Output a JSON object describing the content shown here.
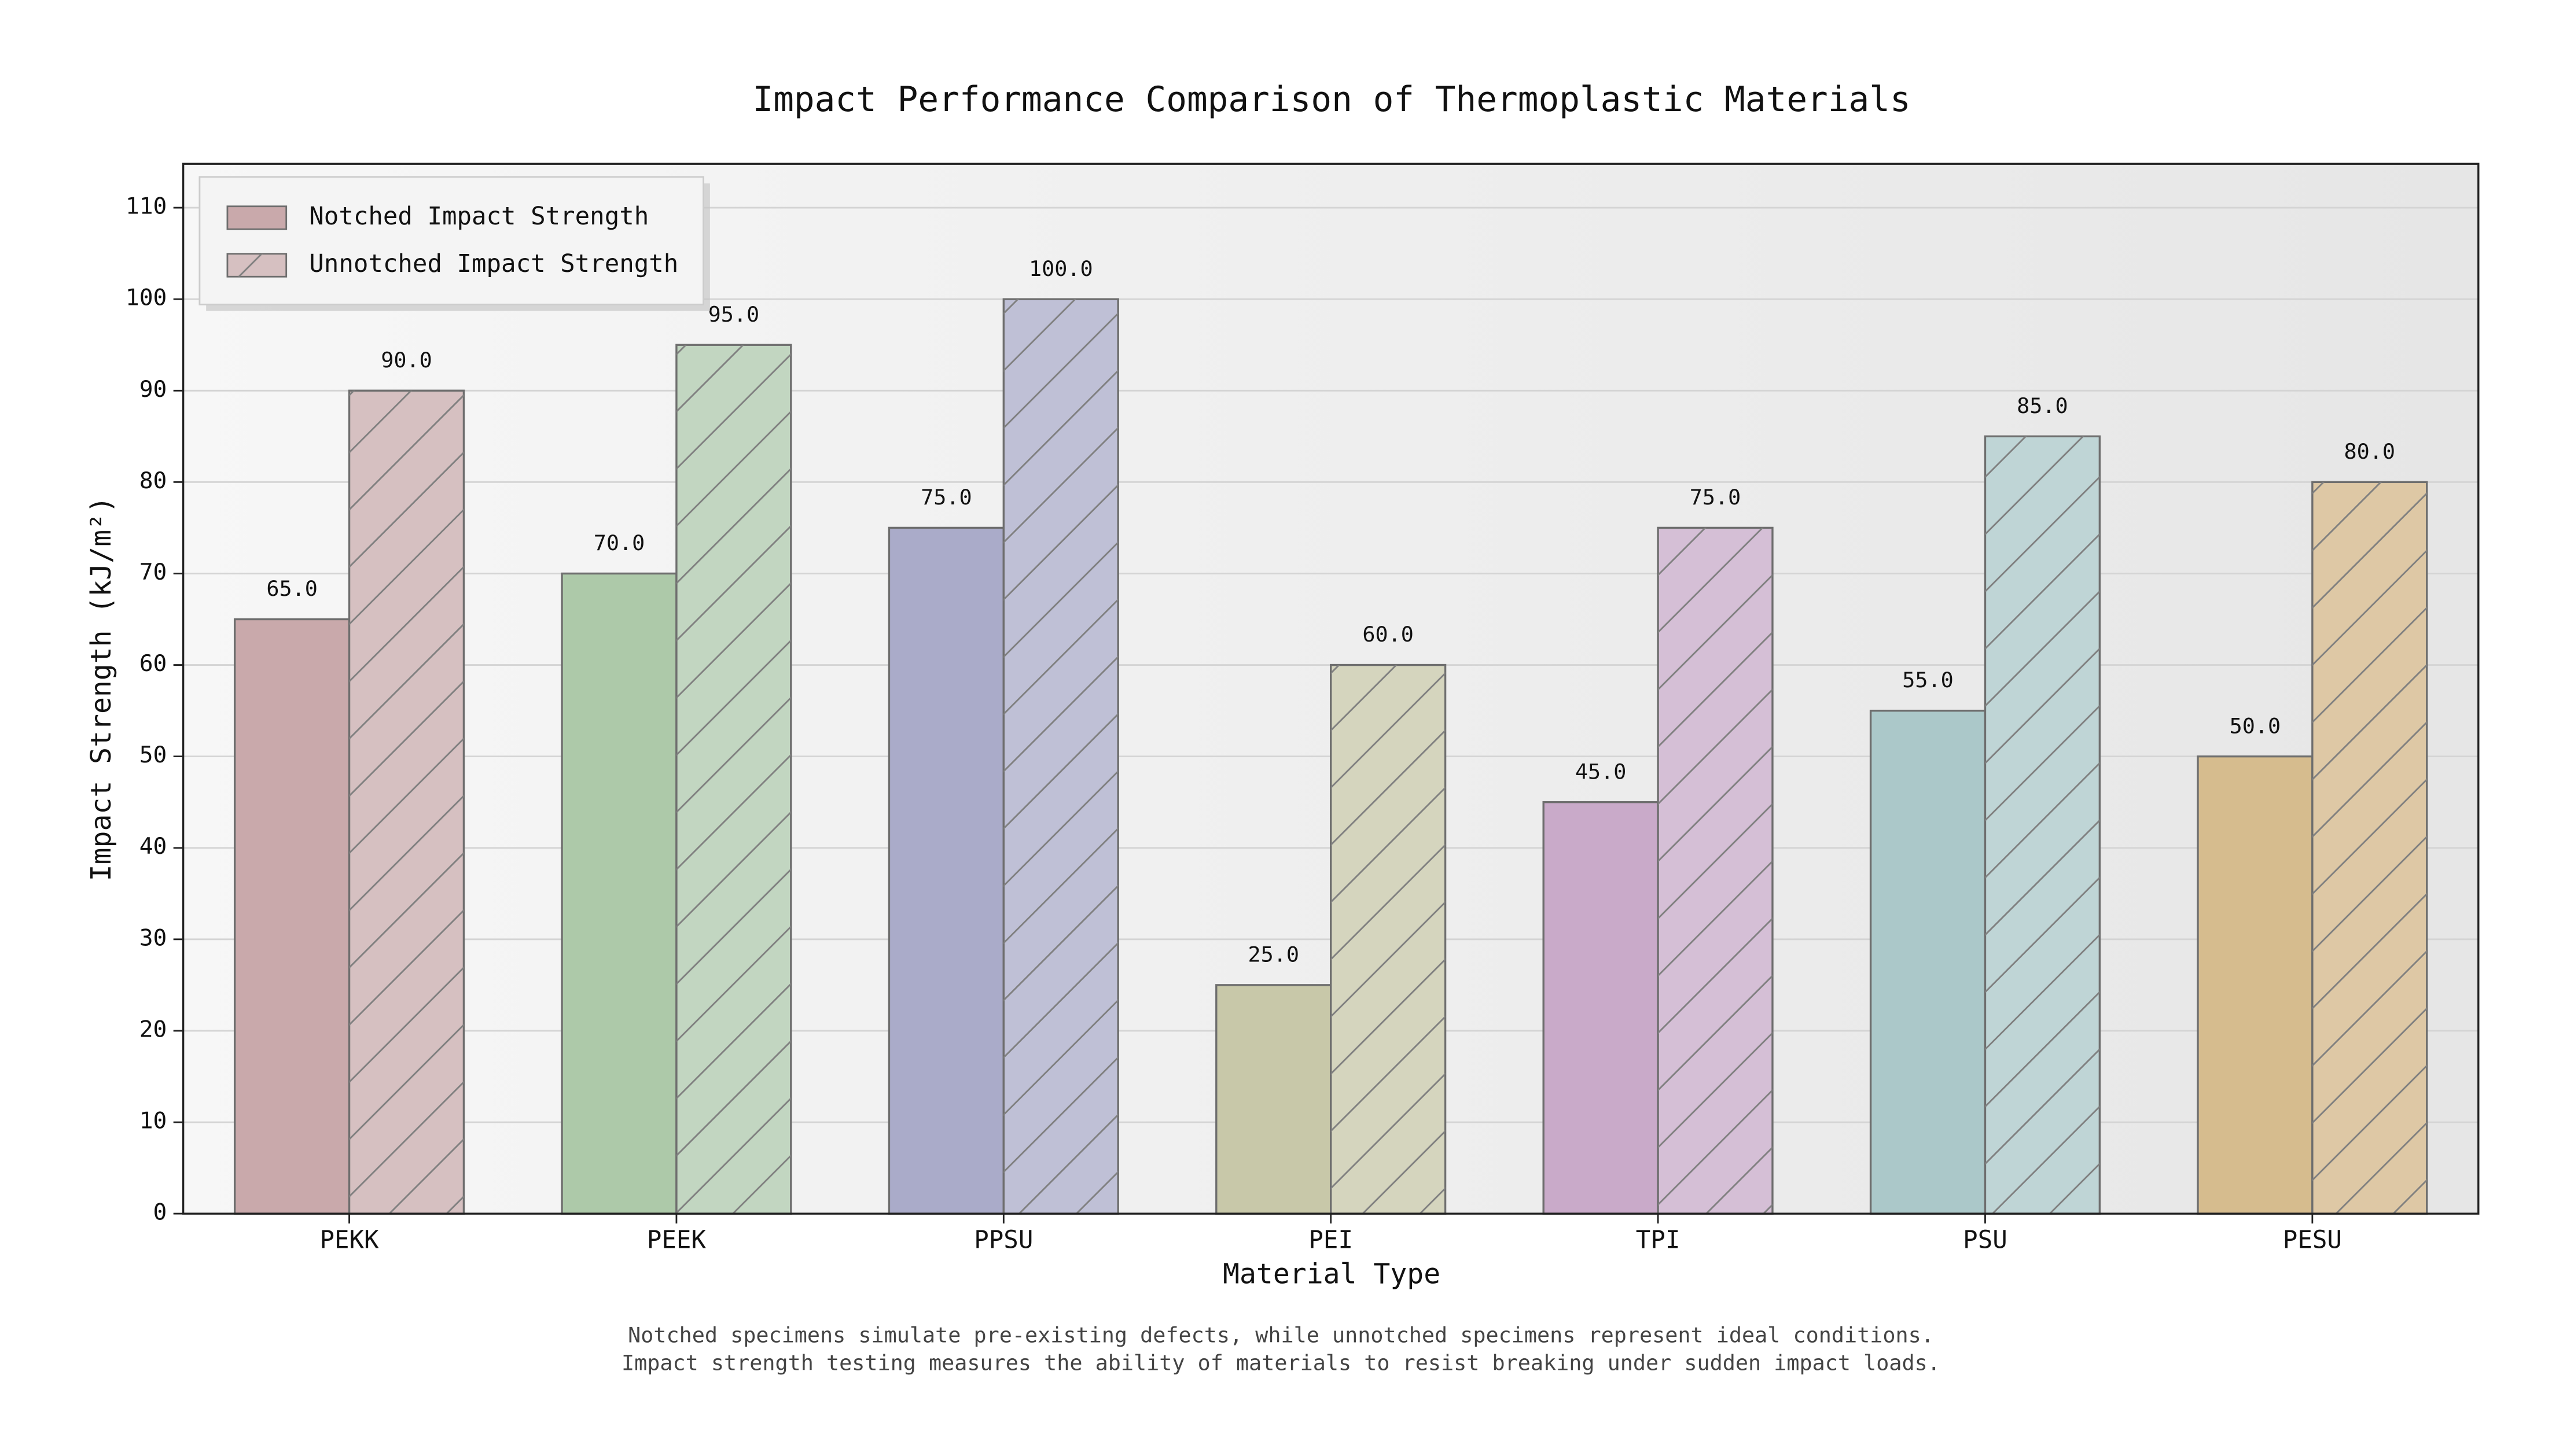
{
  "chart_data": {
    "type": "grouped-bar",
    "title": "Impact Performance Comparison of Thermoplastic Materials",
    "x_label": "Material Type",
    "y_label": "Impact Strength (kJ/m²)",
    "footnotes": [
      "Notched specimens simulate pre-existing defects, while unnotched specimens represent ideal conditions.",
      "Impact strength testing measures the ability of materials to resist breaking under sudden impact loads."
    ],
    "categories": [
      "PEKK",
      "PEEK",
      "PPSU",
      "PEI",
      "TPI",
      "PSU",
      "PESU"
    ],
    "series": [
      {
        "name": "Notched Impact Strength",
        "hatch": false,
        "colors": [
          "#c9a9ab",
          "#adc9a9",
          "#aaabc9",
          "#c8c8a9",
          "#c9aac9",
          "#abc8c9",
          "#d6bc8e"
        ],
        "values": [
          65,
          70,
          75,
          25,
          45,
          55,
          50
        ],
        "value_labels": [
          "65.0",
          "70.0",
          "75.0",
          "25.0",
          "45.0",
          "55.0",
          "50.0"
        ]
      },
      {
        "name": "Unnotched Impact Strength",
        "hatch": true,
        "colors": [
          "#d6c0c1",
          "#c2d6c1",
          "#bfc0d6",
          "#d5d5be",
          "#d5bfd6",
          "#bfd5d6",
          "#dec8a5"
        ],
        "values": [
          90,
          95,
          100,
          60,
          75,
          85,
          80
        ],
        "value_labels": [
          "90.0",
          "95.0",
          "100.0",
          "60.0",
          "75.0",
          "85.0",
          "80.0"
        ]
      }
    ],
    "ylim": [
      0,
      114.8
    ],
    "yticks": [
      0,
      10,
      20,
      30,
      40,
      50,
      60,
      70,
      80,
      90,
      100,
      110
    ],
    "grid": true,
    "legend": "upper-left"
  }
}
